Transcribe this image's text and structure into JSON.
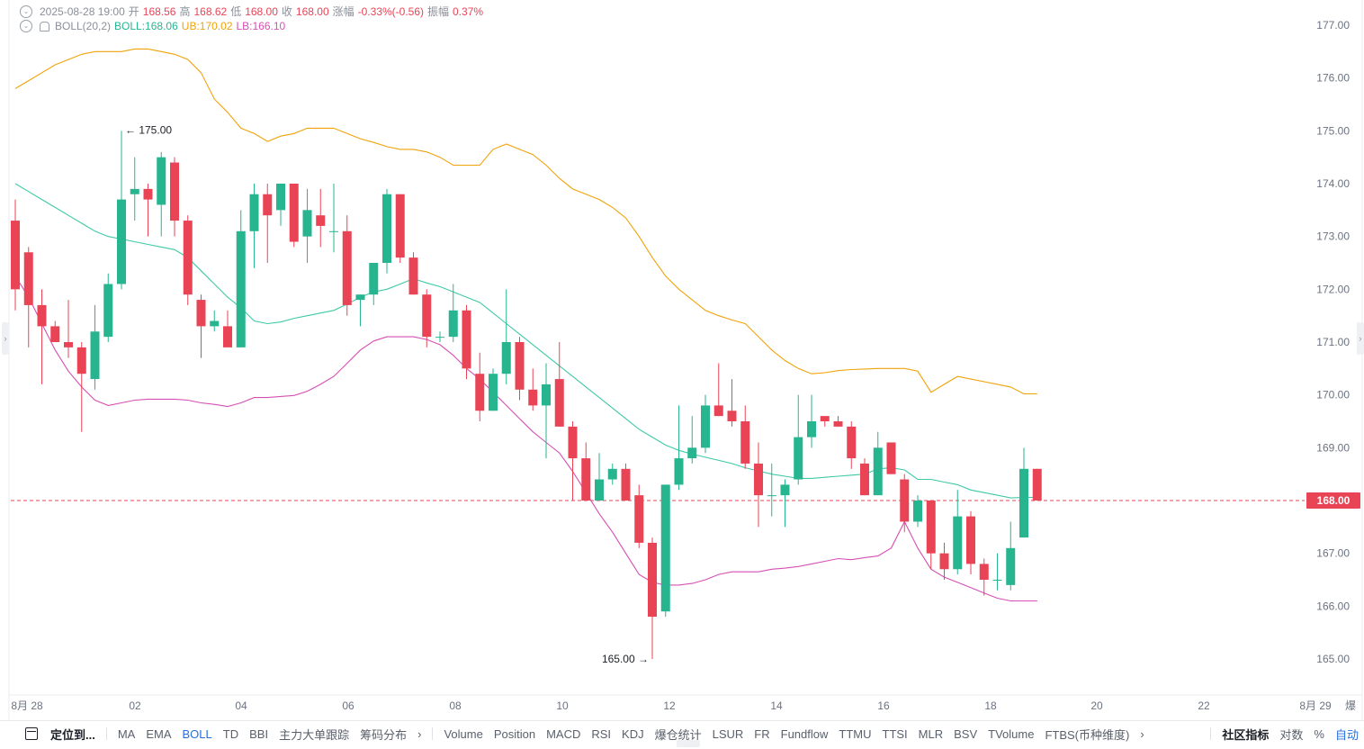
{
  "header": {
    "datetime": "2025-08-28 19:00",
    "open_label": "开",
    "open": "168.56",
    "high_label": "高",
    "high": "168.62",
    "low_label": "低",
    "low": "168.00",
    "close_label": "收",
    "close": "168.00",
    "change_label": "涨幅",
    "change": "-0.33%(-0.56)",
    "amplitude_label": "振幅",
    "amplitude": "0.37%",
    "boll_label": "BOLL(20,2)",
    "boll_mid": "BOLL:168.06",
    "boll_ub": "UB:170.02",
    "boll_lb": "LB:166.10"
  },
  "toolbar": {
    "locate": "定位到...",
    "indicators_main": [
      "MA",
      "EMA",
      "BOLL",
      "TD",
      "BBI",
      "主力大单跟踪",
      "筹码分布"
    ],
    "active_main": "BOLL",
    "indicators_sub": [
      "Volume",
      "Position",
      "MACD",
      "RSI",
      "KDJ",
      "爆仓统计",
      "LSUR",
      "FR",
      "Fundflow",
      "TTMU",
      "TTSI",
      "MLR",
      "BSV",
      "TVolume",
      "FTBS(币种维度)"
    ],
    "community": "社区指标",
    "log": "对数",
    "percent": "%",
    "auto": "自动",
    "chevron": "›"
  },
  "colors": {
    "up": "#26b58f",
    "down": "#e84455",
    "mid": "#3ec9a7",
    "upper": "#f0a30a",
    "lower": "#d64fb4"
  },
  "chart_data": {
    "type": "candlestick",
    "ylim": [
      164.6,
      177.4
    ],
    "yticks": [
      "177.00",
      "176.00",
      "175.00",
      "174.00",
      "173.00",
      "172.00",
      "171.00",
      "170.00",
      "169.00",
      "167.00",
      "166.00",
      "165.00"
    ],
    "current_price": "168.00",
    "current_price_value": 168.0,
    "x_tick_labels": [
      "8月 28",
      "02",
      "04",
      "06",
      "08",
      "10",
      "12",
      "14",
      "16",
      "18",
      "20",
      "22",
      "8月 29",
      "爆"
    ],
    "max_annotation": "← 175.00",
    "max_annotation_value": 175.0,
    "max_annotation_index": 8,
    "min_annotation": "165.00 →",
    "min_annotation_value": 165.0,
    "min_annotation_index": 48,
    "candles": [
      {
        "o": 173.3,
        "h": 173.7,
        "l": 171.6,
        "c": 172.0
      },
      {
        "o": 172.7,
        "h": 172.8,
        "l": 170.9,
        "c": 171.7
      },
      {
        "o": 171.7,
        "h": 172.0,
        "l": 170.2,
        "c": 171.3
      },
      {
        "o": 171.3,
        "h": 171.4,
        "l": 171.0,
        "c": 171.0
      },
      {
        "o": 171.0,
        "h": 171.8,
        "l": 170.7,
        "c": 170.9
      },
      {
        "o": 170.9,
        "h": 171.0,
        "l": 169.3,
        "c": 170.4
      },
      {
        "o": 170.3,
        "h": 171.7,
        "l": 170.1,
        "c": 171.2
      },
      {
        "o": 171.1,
        "h": 172.3,
        "l": 171.0,
        "c": 172.1
      },
      {
        "o": 172.1,
        "h": 175.0,
        "l": 172.0,
        "c": 173.7
      },
      {
        "o": 173.8,
        "h": 174.5,
        "l": 173.3,
        "c": 173.9
      },
      {
        "o": 173.9,
        "h": 174.0,
        "l": 173.0,
        "c": 173.7
      },
      {
        "o": 173.6,
        "h": 174.6,
        "l": 173.0,
        "c": 174.5
      },
      {
        "o": 174.4,
        "h": 174.5,
        "l": 173.0,
        "c": 173.3
      },
      {
        "o": 173.3,
        "h": 173.4,
        "l": 171.7,
        "c": 171.9
      },
      {
        "o": 171.8,
        "h": 171.9,
        "l": 170.7,
        "c": 171.3
      },
      {
        "o": 171.3,
        "h": 171.6,
        "l": 171.2,
        "c": 171.4
      },
      {
        "o": 171.3,
        "h": 171.6,
        "l": 171.0,
        "c": 170.9
      },
      {
        "o": 170.9,
        "h": 173.5,
        "l": 171.0,
        "c": 173.1
      },
      {
        "o": 173.1,
        "h": 174.0,
        "l": 172.4,
        "c": 173.8
      },
      {
        "o": 173.8,
        "h": 174.0,
        "l": 172.5,
        "c": 173.4
      },
      {
        "o": 173.5,
        "h": 174.0,
        "l": 173.2,
        "c": 174.0
      },
      {
        "o": 174.0,
        "h": 174.0,
        "l": 172.8,
        "c": 172.9
      },
      {
        "o": 173.0,
        "h": 173.9,
        "l": 172.5,
        "c": 173.5
      },
      {
        "o": 173.4,
        "h": 173.9,
        "l": 172.8,
        "c": 173.2
      },
      {
        "o": 173.1,
        "h": 174.0,
        "l": 172.7,
        "c": 173.1
      },
      {
        "o": 173.1,
        "h": 173.4,
        "l": 171.5,
        "c": 171.7
      },
      {
        "o": 171.8,
        "h": 171.9,
        "l": 171.3,
        "c": 171.9
      },
      {
        "o": 171.9,
        "h": 172.4,
        "l": 171.7,
        "c": 172.5
      },
      {
        "o": 172.5,
        "h": 173.9,
        "l": 172.3,
        "c": 173.8
      },
      {
        "o": 173.8,
        "h": 173.8,
        "l": 172.5,
        "c": 172.6
      },
      {
        "o": 172.6,
        "h": 172.7,
        "l": 171.9,
        "c": 171.9
      },
      {
        "o": 171.9,
        "h": 172.0,
        "l": 170.9,
        "c": 171.1
      },
      {
        "o": 171.1,
        "h": 171.2,
        "l": 171.0,
        "c": 171.1
      },
      {
        "o": 171.1,
        "h": 172.1,
        "l": 171.0,
        "c": 171.6
      },
      {
        "o": 171.6,
        "h": 171.7,
        "l": 170.3,
        "c": 170.5
      },
      {
        "o": 170.4,
        "h": 170.8,
        "l": 169.5,
        "c": 169.7
      },
      {
        "o": 169.7,
        "h": 170.5,
        "l": 169.7,
        "c": 170.4
      },
      {
        "o": 170.4,
        "h": 172.0,
        "l": 170.2,
        "c": 171.0
      },
      {
        "o": 171.0,
        "h": 171.1,
        "l": 169.9,
        "c": 170.1
      },
      {
        "o": 170.1,
        "h": 170.5,
        "l": 169.7,
        "c": 169.8
      },
      {
        "o": 169.8,
        "h": 170.6,
        "l": 168.8,
        "c": 170.2
      },
      {
        "o": 170.3,
        "h": 171.0,
        "l": 169.4,
        "c": 169.4
      },
      {
        "o": 169.4,
        "h": 169.5,
        "l": 168.0,
        "c": 168.8
      },
      {
        "o": 168.8,
        "h": 169.1,
        "l": 168.0,
        "c": 168.0
      },
      {
        "o": 168.0,
        "h": 168.9,
        "l": 168.0,
        "c": 168.4
      },
      {
        "o": 168.4,
        "h": 168.7,
        "l": 168.3,
        "c": 168.6
      },
      {
        "o": 168.6,
        "h": 168.7,
        "l": 168.0,
        "c": 168.0
      },
      {
        "o": 168.1,
        "h": 168.3,
        "l": 167.1,
        "c": 167.2
      },
      {
        "o": 167.2,
        "h": 167.3,
        "l": 165.0,
        "c": 165.8
      },
      {
        "o": 165.9,
        "h": 168.3,
        "l": 165.8,
        "c": 168.3
      },
      {
        "o": 168.3,
        "h": 169.8,
        "l": 168.2,
        "c": 168.8
      },
      {
        "o": 168.8,
        "h": 169.6,
        "l": 168.7,
        "c": 169.0
      },
      {
        "o": 169.0,
        "h": 170.0,
        "l": 168.9,
        "c": 169.8
      },
      {
        "o": 169.8,
        "h": 170.6,
        "l": 169.6,
        "c": 169.6
      },
      {
        "o": 169.7,
        "h": 170.3,
        "l": 169.4,
        "c": 169.5
      },
      {
        "o": 169.5,
        "h": 169.8,
        "l": 168.6,
        "c": 168.7
      },
      {
        "o": 168.7,
        "h": 169.1,
        "l": 167.5,
        "c": 168.1
      },
      {
        "o": 168.1,
        "h": 168.7,
        "l": 167.7,
        "c": 168.1
      },
      {
        "o": 168.1,
        "h": 168.4,
        "l": 167.5,
        "c": 168.3
      },
      {
        "o": 168.4,
        "h": 170.0,
        "l": 168.3,
        "c": 169.2
      },
      {
        "o": 169.2,
        "h": 170.0,
        "l": 169.0,
        "c": 169.5
      },
      {
        "o": 169.6,
        "h": 169.6,
        "l": 169.4,
        "c": 169.5
      },
      {
        "o": 169.5,
        "h": 169.6,
        "l": 169.4,
        "c": 169.4
      },
      {
        "o": 169.4,
        "h": 169.5,
        "l": 168.6,
        "c": 168.8
      },
      {
        "o": 168.7,
        "h": 168.8,
        "l": 168.1,
        "c": 168.1
      },
      {
        "o": 168.1,
        "h": 169.3,
        "l": 168.1,
        "c": 169.0
      },
      {
        "o": 169.1,
        "h": 169.1,
        "l": 168.5,
        "c": 168.5
      },
      {
        "o": 168.4,
        "h": 168.5,
        "l": 167.4,
        "c": 167.6
      },
      {
        "o": 167.6,
        "h": 168.1,
        "l": 167.5,
        "c": 168.0
      },
      {
        "o": 168.0,
        "h": 168.0,
        "l": 166.7,
        "c": 167.0
      },
      {
        "o": 167.0,
        "h": 167.2,
        "l": 166.5,
        "c": 166.7
      },
      {
        "o": 166.7,
        "h": 168.2,
        "l": 166.6,
        "c": 167.7
      },
      {
        "o": 167.7,
        "h": 167.8,
        "l": 166.6,
        "c": 166.8
      },
      {
        "o": 166.8,
        "h": 166.9,
        "l": 166.2,
        "c": 166.5
      },
      {
        "o": 166.5,
        "h": 167.0,
        "l": 166.3,
        "c": 166.5
      },
      {
        "o": 166.4,
        "h": 167.6,
        "l": 166.3,
        "c": 167.1
      },
      {
        "o": 167.3,
        "h": 169.0,
        "l": 167.3,
        "c": 168.6
      },
      {
        "o": 168.6,
        "h": 168.6,
        "l": 168.0,
        "c": 168.0
      }
    ],
    "boll_mid": [
      174.0,
      173.85,
      173.7,
      173.55,
      173.4,
      173.25,
      173.1,
      173.0,
      172.95,
      172.9,
      172.85,
      172.8,
      172.75,
      172.6,
      172.35,
      172.1,
      171.85,
      171.65,
      171.4,
      171.35,
      171.38,
      171.45,
      171.5,
      171.55,
      171.6,
      171.72,
      171.85,
      171.95,
      172.0,
      172.1,
      172.2,
      172.12,
      172.05,
      171.95,
      171.85,
      171.75,
      171.55,
      171.35,
      171.15,
      170.95,
      170.75,
      170.55,
      170.35,
      170.15,
      169.95,
      169.75,
      169.55,
      169.35,
      169.2,
      169.05,
      168.95,
      168.88,
      168.82,
      168.76,
      168.7,
      168.62,
      168.56,
      168.5,
      168.46,
      168.42,
      168.42,
      168.44,
      168.46,
      168.48,
      168.5,
      168.6,
      168.62,
      168.58,
      168.4,
      168.4,
      168.35,
      168.3,
      168.2,
      168.15,
      168.1,
      168.05,
      168.06,
      168.06
    ],
    "boll_ub": [
      175.8,
      175.95,
      176.1,
      176.25,
      176.35,
      176.45,
      176.5,
      176.5,
      176.5,
      176.55,
      176.55,
      176.5,
      176.45,
      176.35,
      176.1,
      175.6,
      175.35,
      175.05,
      174.95,
      174.8,
      174.9,
      174.95,
      175.05,
      175.05,
      175.05,
      174.95,
      174.85,
      174.78,
      174.7,
      174.65,
      174.65,
      174.6,
      174.5,
      174.35,
      174.35,
      174.35,
      174.65,
      174.75,
      174.65,
      174.55,
      174.35,
      174.1,
      173.9,
      173.8,
      173.7,
      173.55,
      173.35,
      173.0,
      172.6,
      172.25,
      172.0,
      171.8,
      171.6,
      171.5,
      171.42,
      171.35,
      171.1,
      170.85,
      170.65,
      170.5,
      170.4,
      170.42,
      170.46,
      170.48,
      170.49,
      170.5,
      170.5,
      170.5,
      170.45,
      170.05,
      170.2,
      170.35,
      170.3,
      170.25,
      170.2,
      170.15,
      170.02,
      170.02
    ],
    "boll_lb": [
      172.25,
      171.85,
      171.35,
      170.85,
      170.45,
      170.15,
      169.9,
      169.8,
      169.85,
      169.9,
      169.92,
      169.92,
      169.92,
      169.9,
      169.85,
      169.82,
      169.78,
      169.85,
      169.95,
      169.95,
      169.97,
      169.99,
      170.07,
      170.2,
      170.35,
      170.6,
      170.85,
      171.02,
      171.1,
      171.1,
      171.1,
      171.05,
      170.95,
      170.75,
      170.5,
      170.3,
      170.05,
      169.8,
      169.55,
      169.3,
      169.1,
      168.9,
      168.55,
      168.15,
      167.75,
      167.4,
      167.0,
      166.6,
      166.45,
      166.4,
      166.4,
      166.43,
      166.5,
      166.6,
      166.65,
      166.65,
      166.65,
      166.7,
      166.72,
      166.75,
      166.8,
      166.85,
      166.9,
      166.88,
      166.92,
      166.95,
      167.1,
      167.6,
      167.1,
      166.7,
      166.55,
      166.45,
      166.35,
      166.25,
      166.15,
      166.1,
      166.1,
      166.1
    ]
  }
}
